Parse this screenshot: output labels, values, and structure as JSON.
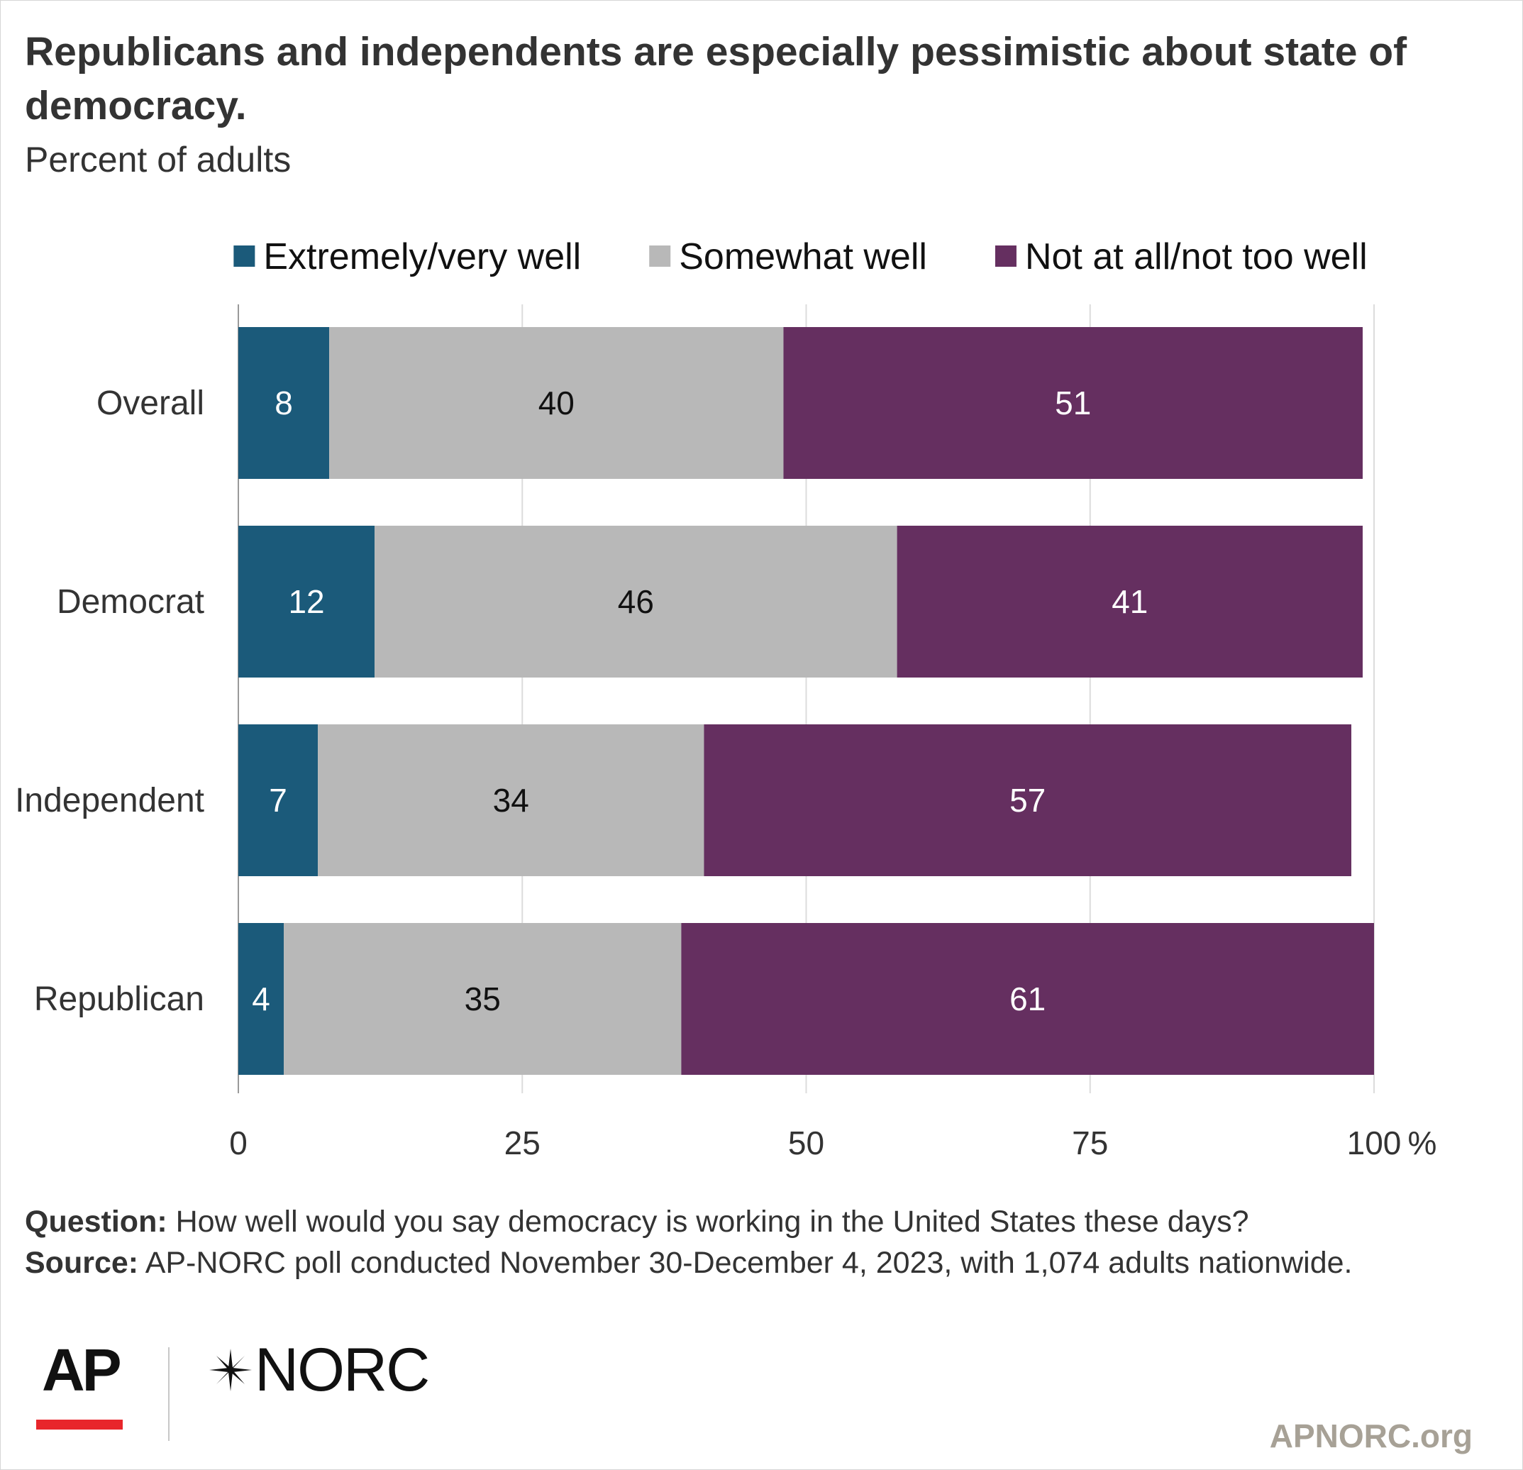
{
  "title": "Republicans and independents are especially pessimistic about state of democracy.",
  "subtitle": "Percent of adults",
  "chart_data": {
    "type": "bar",
    "orientation": "horizontal",
    "stacked": true,
    "categories": [
      "Overall",
      "Democrat",
      "Independent",
      "Republican"
    ],
    "series": [
      {
        "name": "Extremely/very well",
        "values": [
          8,
          12,
          7,
          4
        ],
        "color": "#1b5a7a",
        "label_color": "#ffffff"
      },
      {
        "name": "Somewhat well",
        "values": [
          40,
          46,
          34,
          35
        ],
        "color": "#b8b8b8",
        "label_color": "#111111"
      },
      {
        "name": "Not at all/not too well",
        "values": [
          51,
          41,
          57,
          61
        ],
        "color": "#652f60",
        "label_color": "#ffffff"
      }
    ],
    "x_ticks": [
      0,
      25,
      50,
      75,
      100
    ],
    "x_tick_suffix": "%",
    "xlim": [
      0,
      100
    ],
    "grid": true,
    "legend_position": "top"
  },
  "notes": {
    "question_label": "Question:",
    "question_text": "How well would you say democracy is working in the United States these days?",
    "source_label": "Source:",
    "source_text": "AP-NORC poll conducted November 30-December 4, 2023, with 1,074 adults nationwide."
  },
  "logos": {
    "ap": "AP",
    "norc": "NORC"
  },
  "site": "APNORC.org"
}
